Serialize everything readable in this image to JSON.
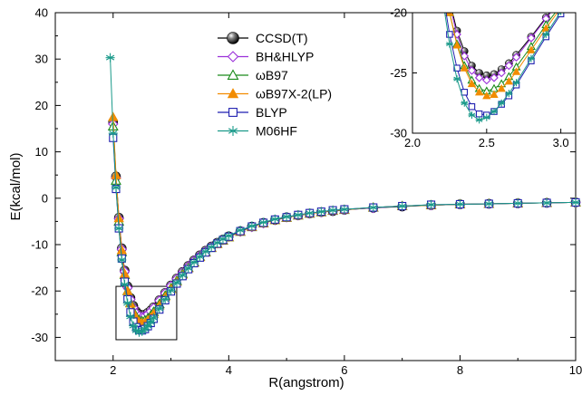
{
  "chart_data": [
    {
      "type": "line",
      "xlabel": "R(angstrom)",
      "ylabel": "E(kcal/mol)",
      "xlim": [
        1,
        10
      ],
      "ylim": [
        -35,
        40
      ],
      "xticks": [
        2,
        4,
        6,
        8,
        10
      ],
      "yticks": [
        -30,
        -20,
        -10,
        0,
        10,
        20,
        30,
        40
      ],
      "grid": false,
      "legend_position": "top-center",
      "zoom_box": {
        "x": [
          2.05,
          3.1
        ],
        "y": [
          -30.5,
          -19
        ]
      },
      "series": [
        {
          "name": "CCSD(T)",
          "color": "#000000",
          "marker": "ball",
          "x": [
            2.0,
            2.05,
            2.1,
            2.15,
            2.2,
            2.25,
            2.3,
            2.35,
            2.4,
            2.45,
            2.5,
            2.55,
            2.6,
            2.65,
            2.7,
            2.8,
            2.9,
            3.0,
            3.1,
            3.2,
            3.3,
            3.4,
            3.5,
            3.6,
            3.7,
            3.8,
            3.9,
            4.0,
            4.2,
            4.4,
            4.6,
            4.8,
            5.0,
            5.2,
            5.4,
            5.6,
            5.8,
            6.0,
            6.5,
            7.0,
            7.5,
            8.0,
            8.5,
            9.0,
            9.5,
            10.0
          ],
          "y": [
            16.5,
            4.7,
            -4.2,
            -10.8,
            -15.6,
            -19.0,
            -21.5,
            -23.2,
            -24.4,
            -25.0,
            -25.2,
            -25.1,
            -24.7,
            -24.2,
            -23.5,
            -22.0,
            -20.4,
            -18.8,
            -17.3,
            -15.9,
            -14.6,
            -13.4,
            -12.3,
            -11.3,
            -10.4,
            -9.6,
            -8.9,
            -8.2,
            -7.1,
            -6.1,
            -5.3,
            -4.7,
            -4.1,
            -3.7,
            -3.3,
            -3.0,
            -2.8,
            -2.5,
            -2.1,
            -1.8,
            -1.5,
            -1.3,
            -1.2,
            -1.1,
            -1.0,
            -0.9
          ]
        },
        {
          "name": "BH&HLYP",
          "color": "#9b30d9",
          "marker": "diamond",
          "x": [
            2.0,
            2.05,
            2.1,
            2.15,
            2.2,
            2.25,
            2.3,
            2.35,
            2.4,
            2.45,
            2.5,
            2.55,
            2.6,
            2.65,
            2.7,
            2.8,
            2.9,
            3.0,
            3.1,
            3.2,
            3.3,
            3.4,
            3.5,
            3.6,
            3.7,
            3.8,
            3.9,
            4.0,
            4.2,
            4.4,
            4.6,
            4.8,
            5.0,
            5.2,
            5.4,
            5.6,
            5.8,
            6.0,
            6.5,
            7.0,
            7.5,
            8.0,
            8.5,
            9.0,
            9.5,
            10.0
          ],
          "y": [
            16.0,
            4.4,
            -4.4,
            -11.0,
            -15.8,
            -19.3,
            -21.8,
            -23.6,
            -24.8,
            -25.4,
            -25.6,
            -25.4,
            -25.0,
            -24.4,
            -23.7,
            -22.1,
            -20.5,
            -18.9,
            -17.4,
            -16.0,
            -14.7,
            -13.5,
            -12.4,
            -11.4,
            -10.5,
            -9.7,
            -9.0,
            -8.3,
            -7.2,
            -6.2,
            -5.4,
            -4.7,
            -4.1,
            -3.7,
            -3.3,
            -3.0,
            -2.7,
            -2.5,
            -2.1,
            -1.7,
            -1.5,
            -1.3,
            -1.2,
            -1.1,
            -1.0,
            -0.9
          ]
        },
        {
          "name": "ωB97",
          "color": "#1a8a1a",
          "marker": "triangle-open",
          "x": [
            2.0,
            2.05,
            2.1,
            2.15,
            2.2,
            2.25,
            2.3,
            2.35,
            2.4,
            2.45,
            2.5,
            2.55,
            2.6,
            2.65,
            2.7,
            2.8,
            2.9,
            3.0,
            3.1,
            3.2,
            3.3,
            3.4,
            3.5,
            3.6,
            3.7,
            3.8,
            3.9,
            4.0,
            4.2,
            4.4,
            4.6,
            4.8,
            5.0,
            5.2,
            5.4,
            5.6,
            5.8,
            6.0,
            6.5,
            7.0,
            7.5,
            8.0,
            8.5,
            9.0,
            9.5,
            10.0
          ],
          "y": [
            15.5,
            3.8,
            -5.0,
            -11.6,
            -16.5,
            -20.0,
            -22.6,
            -24.4,
            -25.6,
            -26.3,
            -26.5,
            -26.3,
            -25.9,
            -25.3,
            -24.5,
            -22.8,
            -21.0,
            -19.4,
            -17.8,
            -16.3,
            -15.0,
            -13.8,
            -12.6,
            -11.6,
            -10.7,
            -9.8,
            -9.1,
            -8.4,
            -7.2,
            -6.2,
            -5.4,
            -4.7,
            -4.2,
            -3.7,
            -3.3,
            -3.0,
            -2.7,
            -2.5,
            -2.0,
            -1.7,
            -1.5,
            -1.3,
            -1.2,
            -1.1,
            -1.0,
            -0.9
          ]
        },
        {
          "name": "ωB97X-2(LP)",
          "color": "#f28c00",
          "marker": "triangle-filled",
          "x": [
            2.0,
            2.05,
            2.1,
            2.15,
            2.2,
            2.25,
            2.3,
            2.35,
            2.4,
            2.45,
            2.5,
            2.55,
            2.6,
            2.65,
            2.7,
            2.8,
            2.9,
            3.0,
            3.1,
            3.2,
            3.3,
            3.4,
            3.5,
            3.6,
            3.7,
            3.8,
            3.9,
            4.0,
            4.2,
            4.4,
            4.6,
            4.8,
            5.0,
            5.2,
            5.4,
            5.6,
            5.8,
            6.0,
            6.5,
            7.0,
            7.5,
            8.0,
            8.5,
            9.0,
            9.5,
            10.0
          ],
          "y": [
            17.5,
            5.0,
            -4.3,
            -11.2,
            -16.3,
            -20.0,
            -22.7,
            -24.6,
            -25.9,
            -26.6,
            -26.9,
            -26.8,
            -26.3,
            -25.7,
            -24.9,
            -23.1,
            -21.3,
            -19.6,
            -18.0,
            -16.5,
            -15.1,
            -13.9,
            -12.7,
            -11.7,
            -10.7,
            -9.9,
            -9.1,
            -8.4,
            -7.2,
            -6.2,
            -5.4,
            -4.7,
            -4.2,
            -3.7,
            -3.3,
            -3.0,
            -2.7,
            -2.5,
            -2.0,
            -1.7,
            -1.5,
            -1.3,
            -1.2,
            -1.1,
            -1.0,
            -0.9
          ]
        },
        {
          "name": "BLYP",
          "color": "#1f1fb0",
          "marker": "square-open",
          "x": [
            2.0,
            2.05,
            2.1,
            2.15,
            2.2,
            2.25,
            2.3,
            2.35,
            2.4,
            2.45,
            2.5,
            2.55,
            2.6,
            2.65,
            2.7,
            2.8,
            2.9,
            3.0,
            3.1,
            3.2,
            3.3,
            3.4,
            3.5,
            3.6,
            3.7,
            3.8,
            3.9,
            4.0,
            4.2,
            4.4,
            4.6,
            4.8,
            5.0,
            5.2,
            5.4,
            5.6,
            5.8,
            6.0,
            6.5,
            7.0,
            7.5,
            8.0,
            8.5,
            9.0,
            9.5,
            10.0
          ],
          "y": [
            13.0,
            2.0,
            -6.5,
            -13.0,
            -18.0,
            -21.8,
            -24.6,
            -26.6,
            -27.8,
            -28.4,
            -28.5,
            -28.2,
            -27.6,
            -26.9,
            -26.0,
            -24.0,
            -22.0,
            -20.1,
            -18.4,
            -16.8,
            -15.3,
            -14.0,
            -12.8,
            -11.7,
            -10.7,
            -9.8,
            -9.0,
            -8.3,
            -7.1,
            -6.1,
            -5.3,
            -4.6,
            -4.1,
            -3.6,
            -3.2,
            -2.9,
            -2.6,
            -2.4,
            -2.0,
            -1.7,
            -1.4,
            -1.3,
            -1.2,
            -1.1,
            -1.0,
            -0.9
          ]
        },
        {
          "name": "M06HF",
          "color": "#1a9a8a",
          "marker": "asterisk",
          "x": [
            1.95,
            2.0,
            2.05,
            2.1,
            2.15,
            2.2,
            2.25,
            2.3,
            2.35,
            2.4,
            2.45,
            2.5,
            2.55,
            2.6,
            2.65,
            2.7,
            2.8,
            2.9,
            3.0,
            3.1,
            3.2,
            3.3,
            3.4,
            3.5,
            3.6,
            3.7,
            3.8,
            3.9,
            4.0,
            4.2,
            4.4,
            4.6,
            4.8,
            5.0,
            5.2,
            5.4,
            5.6,
            5.8,
            6.0,
            6.5,
            7.0,
            7.5,
            8.0,
            8.5,
            9.0,
            9.5,
            10.0
          ],
          "y": [
            30.3,
            14.0,
            2.3,
            -6.5,
            -13.3,
            -18.6,
            -22.6,
            -25.5,
            -27.5,
            -28.5,
            -28.9,
            -28.7,
            -28.2,
            -27.5,
            -26.7,
            -25.8,
            -23.8,
            -21.8,
            -19.9,
            -18.2,
            -16.6,
            -15.1,
            -13.8,
            -12.6,
            -11.5,
            -10.5,
            -9.6,
            -8.8,
            -8.1,
            -6.9,
            -6.0,
            -5.2,
            -4.5,
            -4.0,
            -3.6,
            -3.2,
            -2.9,
            -2.6,
            -2.4,
            -2.0,
            -1.7,
            -1.4,
            -1.3,
            -1.2,
            -1.1,
            -1.0,
            -0.9
          ]
        }
      ]
    },
    {
      "type": "line",
      "inset_of": "main",
      "xlim": [
        2.0,
        3.1
      ],
      "ylim": [
        -30,
        -20
      ],
      "xticks": [
        2.0,
        2.5,
        3.0
      ],
      "yticks": [
        -30,
        -25,
        -20
      ],
      "xtick_labels": [
        "2.0",
        "2.5",
        "3.0"
      ],
      "ytick_labels": [
        "-30",
        "-25",
        "-20"
      ]
    }
  ]
}
